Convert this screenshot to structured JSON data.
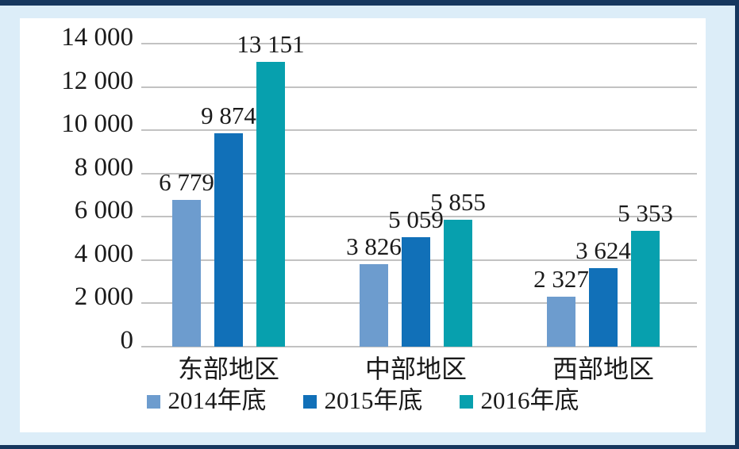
{
  "chart_data": {
    "type": "bar",
    "categories": [
      "东部地区",
      "中部地区",
      "西部地区"
    ],
    "series": [
      {
        "name": "2014年底",
        "color": "#6d9cce",
        "values": [
          6779,
          3826,
          2327
        ],
        "labels": [
          "6 779",
          "3 826",
          "2 327"
        ]
      },
      {
        "name": "2015年底",
        "color": "#1170b8",
        "values": [
          9874,
          5059,
          3624
        ],
        "labels": [
          "9 874",
          "5 059",
          "3 624"
        ]
      },
      {
        "name": "2016年底",
        "color": "#07a0ae",
        "values": [
          13151,
          5855,
          5353
        ],
        "labels": [
          "13 151",
          "5 855",
          "5 353"
        ]
      }
    ],
    "ylim": [
      0,
      14000
    ],
    "ytick_step": 2000,
    "ytick_labels": [
      "0",
      "2 000",
      "4 000",
      "6 000",
      "8 000",
      "10 000",
      "12 000",
      "14 000"
    ],
    "grid": true,
    "legend_position": "bottom"
  },
  "colors": {
    "page_background": "#dcedf8",
    "panel_background": "#ffffff",
    "frame_border": "#16375e",
    "gridline": "#c2c2c2",
    "text": "#1a1a1a"
  }
}
